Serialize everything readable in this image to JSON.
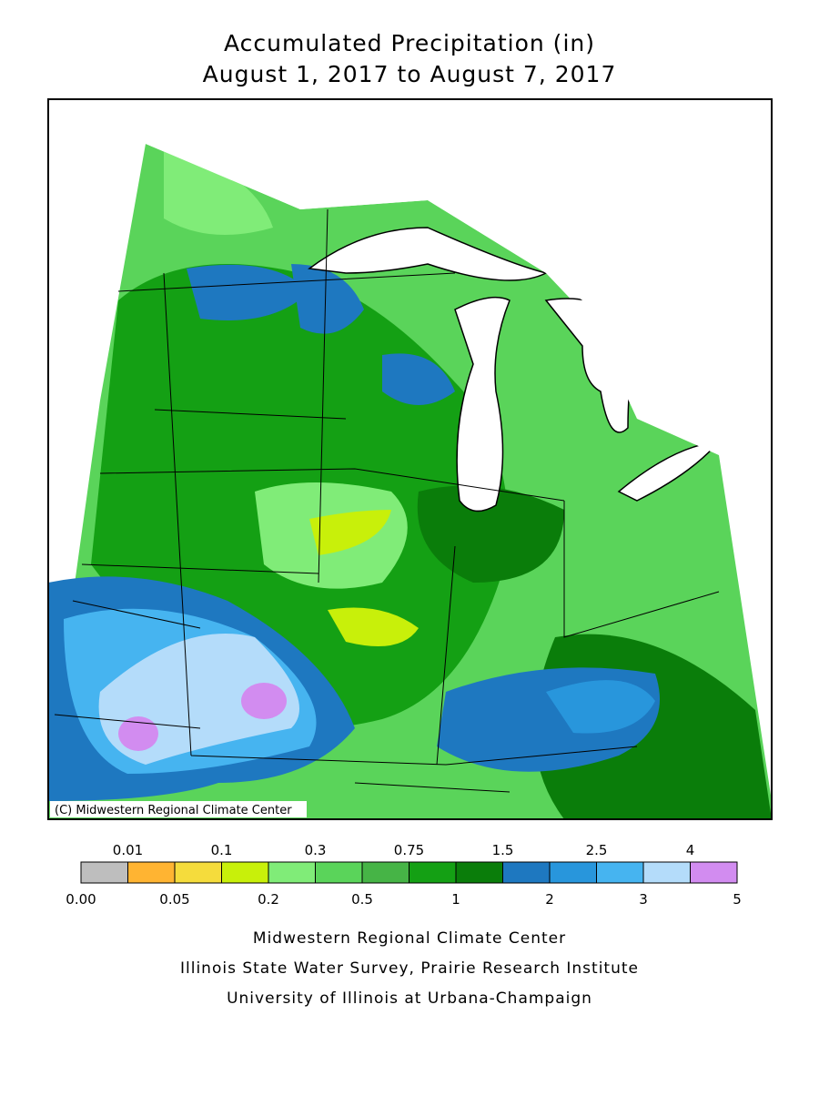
{
  "header": {
    "title": "Accumulated Precipitation (in)",
    "subtitle": "August 1, 2017 to August 7, 2017"
  },
  "map": {
    "credit": "(C) Midwestern Regional Climate Center"
  },
  "legend": {
    "boundaries": [
      "0.00",
      "0.01",
      "0.05",
      "0.1",
      "0.2",
      "0.3",
      "0.5",
      "0.75",
      "1",
      "1.5",
      "2",
      "2.5",
      "3",
      "4",
      "5"
    ],
    "colors": [
      "#bebebe",
      "#ffb432",
      "#f5dc3c",
      "#c8f00a",
      "#80ec78",
      "#5ad45a",
      "#46b446",
      "#14a014",
      "#0a7d0a",
      "#1e78c0",
      "#2896dc",
      "#46b4f0",
      "#b4dcfa",
      "#d28cf0"
    ]
  },
  "footer": {
    "lines": [
      "Midwestern Regional Climate Center",
      "Illinois State Water Survey, Prairie Research Institute",
      "University of Illinois at Urbana-Champaign"
    ]
  }
}
